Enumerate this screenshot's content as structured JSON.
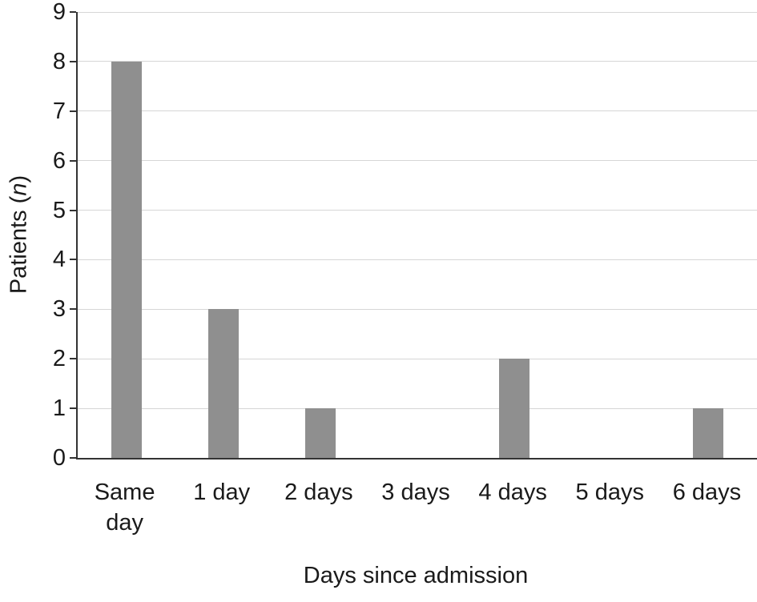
{
  "chart_data": {
    "type": "bar",
    "categories": [
      "Same\nday",
      "1 day",
      "2 days",
      "3 days",
      "4 days",
      "5 days",
      "6 days"
    ],
    "values": [
      8,
      3,
      1,
      0,
      2,
      0,
      1
    ],
    "title": "",
    "xlabel": "Days since admission",
    "ylabel": "Patients (n)",
    "ylabel_prefix": "Patients (",
    "ylabel_italic": "n",
    "ylabel_suffix": ")",
    "ylim": [
      0,
      9
    ],
    "yticks": [
      0,
      1,
      2,
      3,
      4,
      5,
      6,
      7,
      8,
      9
    ],
    "grid": "horizontal",
    "legend": "none",
    "bar_color": "#8f8f8f",
    "gridline_color": "#d6d6d6",
    "axis_color": "#333333"
  }
}
